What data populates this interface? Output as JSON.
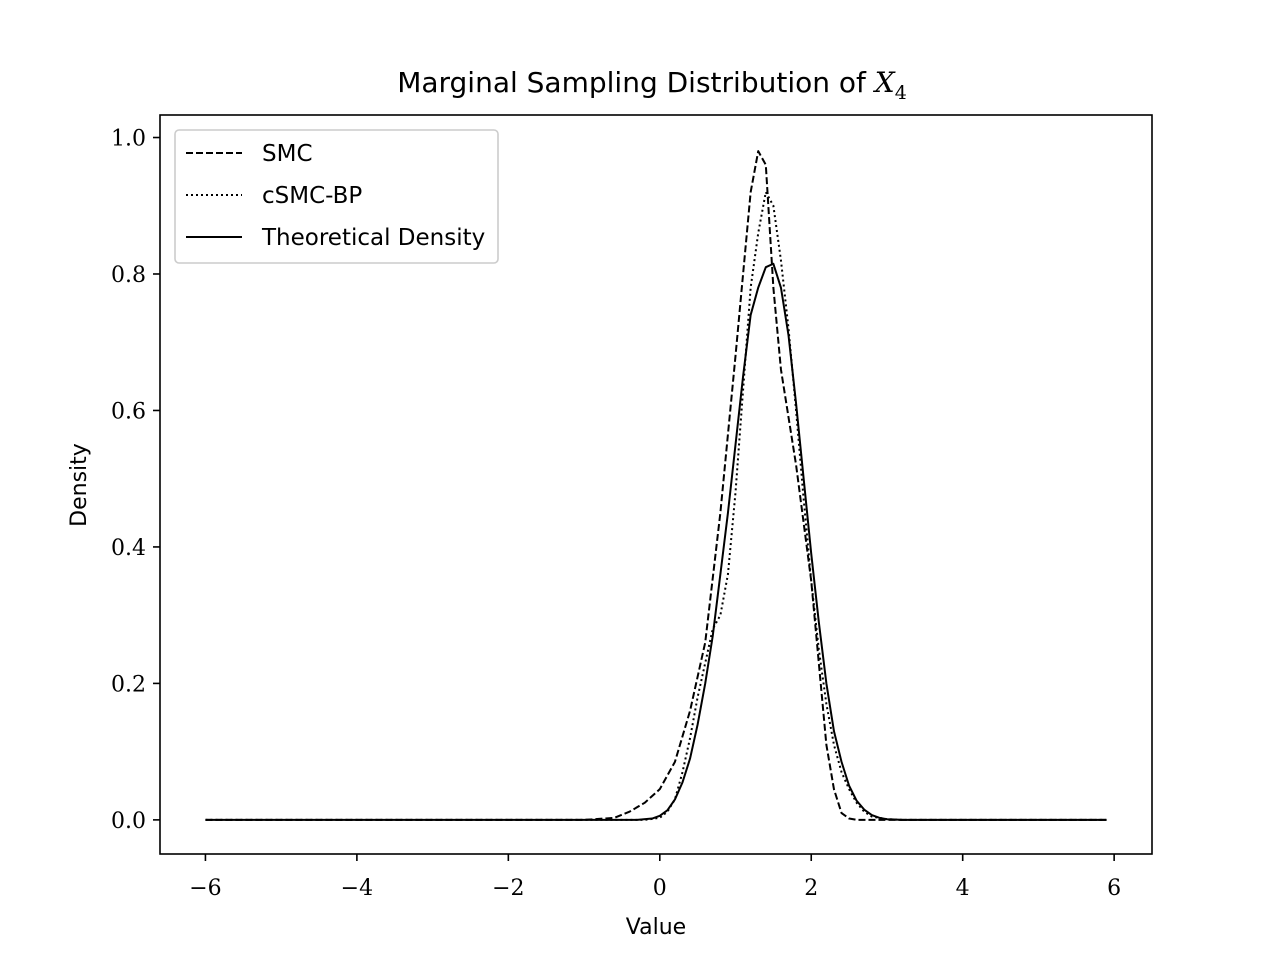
{
  "chart_data": {
    "type": "line",
    "title": "Marginal Sampling Distribution of",
    "title_math": "X",
    "title_subscript": "4",
    "xlabel": "Value",
    "ylabel": "Density",
    "xlim": [
      -6.6,
      6.5
    ],
    "ylim": [
      -0.05,
      1.033
    ],
    "xticks": [
      -6,
      -4,
      -2,
      0,
      2,
      4,
      6
    ],
    "xtick_labels": [
      "−6",
      "−4",
      "−2",
      "0",
      "2",
      "4",
      "6"
    ],
    "yticks": [
      0.0,
      0.2,
      0.4,
      0.6,
      0.8,
      1.0
    ],
    "ytick_labels": [
      "0.0",
      "0.2",
      "0.4",
      "0.6",
      "0.8",
      "1.0"
    ],
    "grid": false,
    "legend_position": "top-left",
    "series": [
      {
        "name": "SMC",
        "style": "dashed",
        "x": [
          -6,
          -1,
          -0.6,
          -0.4,
          -0.2,
          0,
          0.2,
          0.4,
          0.6,
          0.8,
          1.0,
          1.2,
          1.3,
          1.4,
          1.5,
          1.6,
          1.8,
          2.0,
          2.1,
          2.2,
          2.3,
          2.4,
          2.5,
          2.6,
          2.8,
          3.0,
          5.9
        ],
        "y": [
          0.0,
          0.0,
          0.003,
          0.012,
          0.025,
          0.045,
          0.085,
          0.16,
          0.26,
          0.45,
          0.68,
          0.92,
          0.98,
          0.96,
          0.78,
          0.66,
          0.52,
          0.35,
          0.23,
          0.11,
          0.045,
          0.01,
          0.002,
          0.0,
          0.0,
          0.0,
          0.0
        ]
      },
      {
        "name": "cSMC-BP",
        "style": "dotted",
        "x": [
          -6,
          -0.2,
          0,
          0.1,
          0.2,
          0.3,
          0.4,
          0.5,
          0.6,
          0.7,
          0.8,
          0.9,
          1.0,
          1.1,
          1.2,
          1.3,
          1.4,
          1.5,
          1.6,
          1.7,
          1.8,
          1.9,
          2.0,
          2.1,
          2.2,
          2.3,
          2.4,
          2.5,
          2.6,
          2.7,
          2.8,
          3.0,
          3.2,
          5.9
        ],
        "y": [
          0.0,
          0.0,
          0.003,
          0.012,
          0.03,
          0.07,
          0.12,
          0.18,
          0.23,
          0.28,
          0.3,
          0.36,
          0.48,
          0.63,
          0.78,
          0.86,
          0.92,
          0.9,
          0.82,
          0.72,
          0.6,
          0.47,
          0.35,
          0.25,
          0.17,
          0.11,
          0.07,
          0.045,
          0.025,
          0.012,
          0.005,
          0.001,
          0.0,
          0.0
        ]
      },
      {
        "name": "Theoretical Density",
        "style": "solid",
        "x": [
          -6,
          -0.3,
          -0.1,
          0,
          0.1,
          0.2,
          0.3,
          0.4,
          0.5,
          0.6,
          0.7,
          0.8,
          0.9,
          1.0,
          1.1,
          1.2,
          1.3,
          1.4,
          1.5,
          1.6,
          1.7,
          1.8,
          1.9,
          2.0,
          2.1,
          2.2,
          2.3,
          2.4,
          2.5,
          2.6,
          2.7,
          2.8,
          2.9,
          3.0,
          3.2,
          3.4,
          5.9
        ],
        "y": [
          0.0,
          0.0,
          0.002,
          0.006,
          0.014,
          0.03,
          0.055,
          0.09,
          0.14,
          0.2,
          0.27,
          0.36,
          0.45,
          0.55,
          0.65,
          0.74,
          0.78,
          0.81,
          0.815,
          0.78,
          0.71,
          0.61,
          0.5,
          0.39,
          0.29,
          0.2,
          0.13,
          0.085,
          0.05,
          0.028,
          0.015,
          0.007,
          0.003,
          0.001,
          0.0,
          0.0,
          0.0
        ]
      }
    ]
  }
}
